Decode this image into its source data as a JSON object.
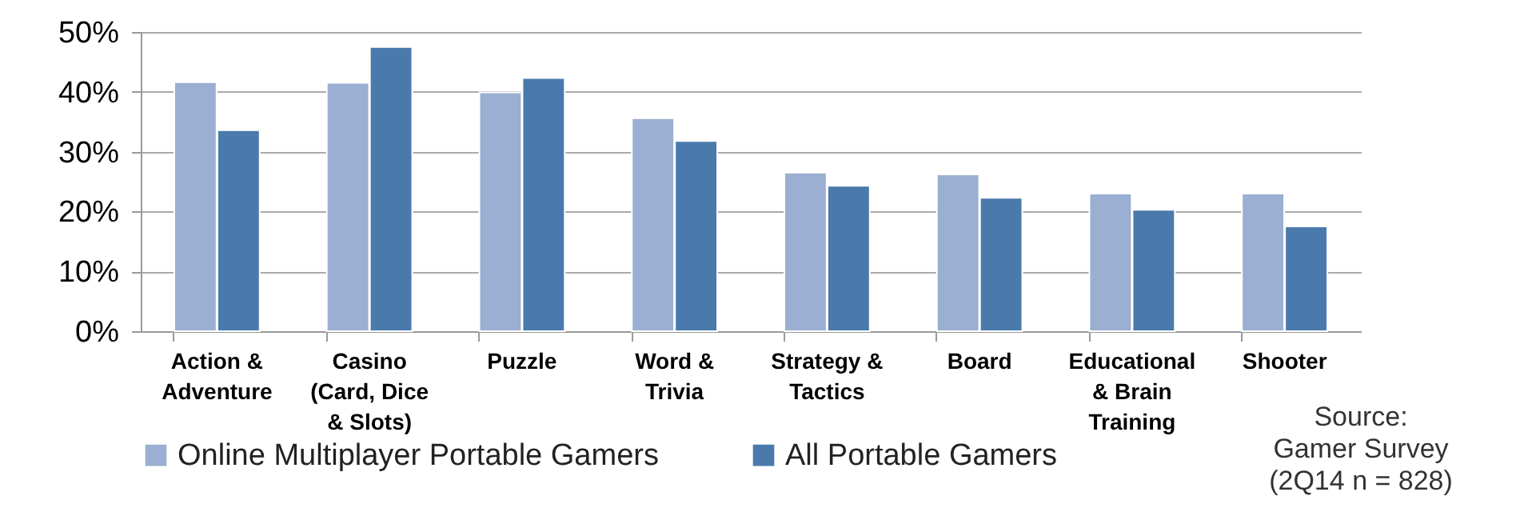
{
  "chart_data": {
    "type": "bar",
    "categories": [
      "Action &\nAdventure",
      "Casino\n(Card, Dice\n& Slots)",
      "Puzzle",
      "Word &\nTrivia",
      "Strategy &\nTactics",
      "Board",
      "Educational\n& Brain\nTraining",
      "Shooter"
    ],
    "series": [
      {
        "name": "Online Multiplayer Portable Gamers",
        "color": "#9aafd1",
        "values": [
          41.6,
          41.5,
          39.9,
          35.6,
          26.5,
          26.2,
          23.0,
          23.0
        ]
      },
      {
        "name": "All Portable Gamers",
        "color": "#4a7aab",
        "values": [
          33.6,
          47.5,
          42.3,
          31.8,
          24.3,
          22.3,
          20.3,
          17.5
        ]
      }
    ],
    "ylim": [
      0,
      50
    ],
    "yticks": [
      {
        "value": 0,
        "label": "0%"
      },
      {
        "value": 10,
        "label": "10%"
      },
      {
        "value": 20,
        "label": "20%"
      },
      {
        "value": 30,
        "label": "30%"
      },
      {
        "value": 40,
        "label": "40%"
      },
      {
        "value": 50,
        "label": "50%"
      }
    ],
    "grid": "y",
    "legend": "bottom",
    "annotations": [
      "Source:\nGamer Survey\n(2Q14 n = 828)"
    ]
  }
}
